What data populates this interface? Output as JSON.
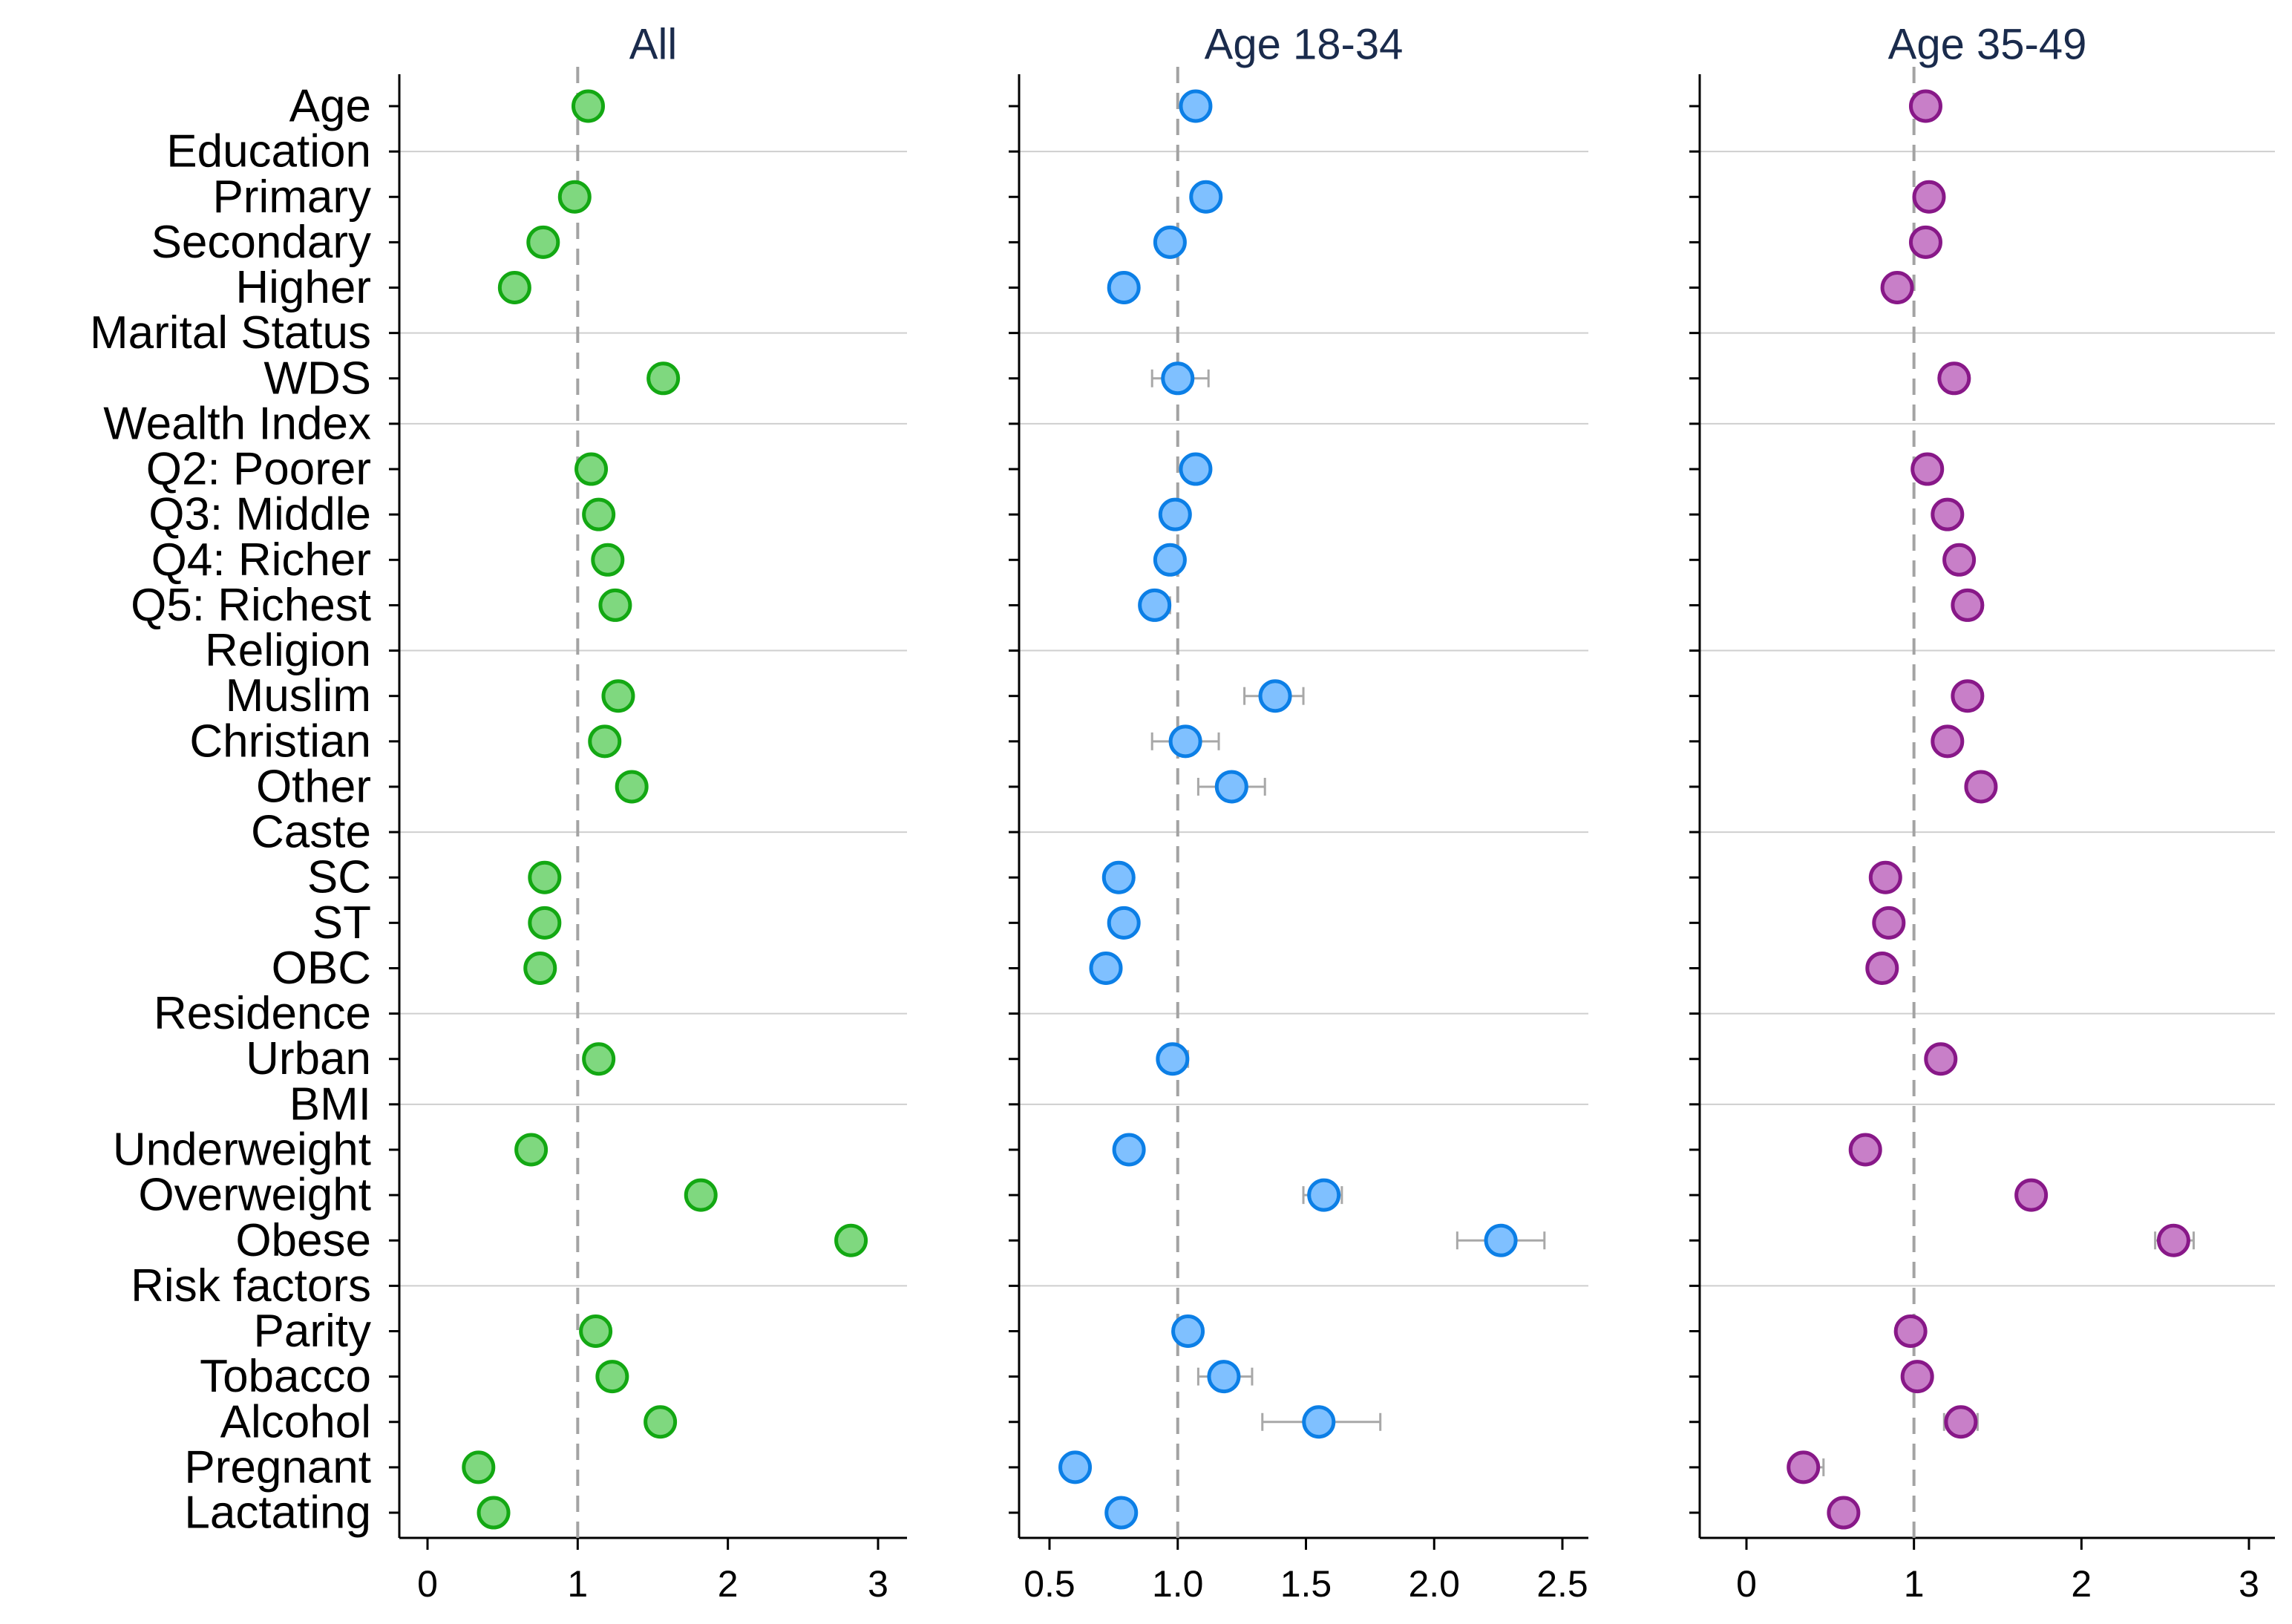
{
  "chart_data": {
    "type": "scatter",
    "reference_value": 1,
    "rows": [
      {
        "label": "Age",
        "header": false
      },
      {
        "label": "Education",
        "header": true
      },
      {
        "label": "Primary",
        "header": false
      },
      {
        "label": "Secondary",
        "header": false
      },
      {
        "label": "Higher",
        "header": false
      },
      {
        "label": "Marital Status",
        "header": true
      },
      {
        "label": "WDS",
        "header": false
      },
      {
        "label": "Wealth Index",
        "header": true
      },
      {
        "label": "Q2: Poorer",
        "header": false
      },
      {
        "label": "Q3: Middle",
        "header": false
      },
      {
        "label": "Q4: Richer",
        "header": false
      },
      {
        "label": "Q5: Richest",
        "header": false
      },
      {
        "label": "Religion",
        "header": true
      },
      {
        "label": "Muslim",
        "header": false
      },
      {
        "label": "Christian",
        "header": false
      },
      {
        "label": "Other",
        "header": false
      },
      {
        "label": "Caste",
        "header": true
      },
      {
        "label": "SC",
        "header": false
      },
      {
        "label": "ST",
        "header": false
      },
      {
        "label": "OBC",
        "header": false
      },
      {
        "label": "Residence",
        "header": true
      },
      {
        "label": "Urban",
        "header": false
      },
      {
        "label": "BMI",
        "header": true
      },
      {
        "label": "Underweight",
        "header": false
      },
      {
        "label": "Overweight",
        "header": false
      },
      {
        "label": "Obese",
        "header": false
      },
      {
        "label": "Risk factors",
        "header": true
      },
      {
        "label": "Parity",
        "header": false
      },
      {
        "label": "Tobacco",
        "header": false
      },
      {
        "label": "Alcohol",
        "header": false
      },
      {
        "label": "Pregnant",
        "header": false
      },
      {
        "label": "Lactating",
        "header": false
      }
    ],
    "panels": [
      {
        "title": "All",
        "xlim": [
          -0.2,
          3.2
        ],
        "ticks": [
          0,
          1,
          2,
          3
        ],
        "tick_labels": [
          "0",
          "1",
          "2",
          "3"
        ],
        "color": "#7fd87f",
        "edge": "#13a813",
        "points": [
          {
            "row": "Age",
            "est": 1.07,
            "lo": 1.05,
            "hi": 1.09
          },
          {
            "row": "Primary",
            "est": 0.98,
            "lo": 0.95,
            "hi": 1.01
          },
          {
            "row": "Secondary",
            "est": 0.77,
            "lo": 0.75,
            "hi": 0.79
          },
          {
            "row": "Higher",
            "est": 0.58,
            "lo": 0.56,
            "hi": 0.6
          },
          {
            "row": "WDS",
            "est": 1.57,
            "lo": 1.55,
            "hi": 1.59
          },
          {
            "row": "Q2: Poorer",
            "est": 1.09,
            "lo": 1.07,
            "hi": 1.11
          },
          {
            "row": "Q3: Middle",
            "est": 1.14,
            "lo": 1.12,
            "hi": 1.16
          },
          {
            "row": "Q4: Richer",
            "est": 1.2,
            "lo": 1.18,
            "hi": 1.22
          },
          {
            "row": "Q5: Richest",
            "est": 1.25,
            "lo": 1.23,
            "hi": 1.27
          },
          {
            "row": "Muslim",
            "est": 1.27,
            "lo": 1.25,
            "hi": 1.29
          },
          {
            "row": "Christian",
            "est": 1.18,
            "lo": 1.16,
            "hi": 1.2
          },
          {
            "row": "Other",
            "est": 1.36,
            "lo": 1.33,
            "hi": 1.39
          },
          {
            "row": "SC",
            "est": 0.78,
            "lo": 0.76,
            "hi": 0.8
          },
          {
            "row": "ST",
            "est": 0.78,
            "lo": 0.76,
            "hi": 0.8
          },
          {
            "row": "OBC",
            "est": 0.75,
            "lo": 0.73,
            "hi": 0.77
          },
          {
            "row": "Urban",
            "est": 1.14,
            "lo": 1.12,
            "hi": 1.16
          },
          {
            "row": "Underweight",
            "est": 0.69,
            "lo": 0.67,
            "hi": 0.71
          },
          {
            "row": "Overweight",
            "est": 1.82,
            "lo": 1.8,
            "hi": 1.84
          },
          {
            "row": "Obese",
            "est": 2.82,
            "lo": 2.74,
            "hi": 2.9
          },
          {
            "row": "Parity",
            "est": 1.12,
            "lo": 1.11,
            "hi": 1.13
          },
          {
            "row": "Tobacco",
            "est": 1.23,
            "lo": 1.21,
            "hi": 1.25
          },
          {
            "row": "Alcohol",
            "est": 1.55,
            "lo": 1.47,
            "hi": 1.63
          },
          {
            "row": "Pregnant",
            "est": 0.34,
            "lo": 0.32,
            "hi": 0.36
          },
          {
            "row": "Lactating",
            "est": 0.44,
            "lo": 0.43,
            "hi": 0.45
          }
        ]
      },
      {
        "title": "Age 18-34",
        "xlim": [
          0.4,
          2.6
        ],
        "ticks": [
          0.5,
          1.0,
          1.5,
          2.0,
          2.5
        ],
        "tick_labels": [
          "0.5",
          "1.0",
          "1.5",
          "2.0",
          "2.5"
        ],
        "color": "#7fc0ff",
        "edge": "#0c7fe6",
        "points": [
          {
            "row": "Age",
            "est": 1.07,
            "lo": 1.04,
            "hi": 1.1
          },
          {
            "row": "Primary",
            "est": 1.11,
            "lo": 1.06,
            "hi": 1.16
          },
          {
            "row": "Secondary",
            "est": 0.97,
            "lo": 0.94,
            "hi": 1.0
          },
          {
            "row": "Higher",
            "est": 0.79,
            "lo": 0.76,
            "hi": 0.82
          },
          {
            "row": "WDS",
            "est": 1.0,
            "lo": 0.9,
            "hi": 1.12
          },
          {
            "row": "Q2: Poorer",
            "est": 1.07,
            "lo": 1.03,
            "hi": 1.11
          },
          {
            "row": "Q3: Middle",
            "est": 0.99,
            "lo": 0.95,
            "hi": 1.04
          },
          {
            "row": "Q4: Richer",
            "est": 0.97,
            "lo": 0.93,
            "hi": 1.02
          },
          {
            "row": "Q5: Richest",
            "est": 0.91,
            "lo": 0.87,
            "hi": 0.97
          },
          {
            "row": "Muslim",
            "est": 1.38,
            "lo": 1.26,
            "hi": 1.49
          },
          {
            "row": "Christian",
            "est": 1.03,
            "lo": 0.9,
            "hi": 1.16
          },
          {
            "row": "Other",
            "est": 1.21,
            "lo": 1.08,
            "hi": 1.34
          },
          {
            "row": "SC",
            "est": 0.77,
            "lo": 0.74,
            "hi": 0.8
          },
          {
            "row": "ST",
            "est": 0.79,
            "lo": 0.75,
            "hi": 0.83
          },
          {
            "row": "OBC",
            "est": 0.72,
            "lo": 0.69,
            "hi": 0.75
          },
          {
            "row": "Urban",
            "est": 0.98,
            "lo": 0.94,
            "hi": 1.04
          },
          {
            "row": "Underweight",
            "est": 0.81,
            "lo": 0.78,
            "hi": 0.84
          },
          {
            "row": "Overweight",
            "est": 1.57,
            "lo": 1.49,
            "hi": 1.64
          },
          {
            "row": "Obese",
            "est": 2.26,
            "lo": 2.09,
            "hi": 2.43
          },
          {
            "row": "Parity",
            "est": 1.04,
            "lo": 1.02,
            "hi": 1.06
          },
          {
            "row": "Tobacco",
            "est": 1.18,
            "lo": 1.08,
            "hi": 1.29
          },
          {
            "row": "Alcohol",
            "est": 1.55,
            "lo": 1.33,
            "hi": 1.79
          },
          {
            "row": "Pregnant",
            "est": 0.6,
            "lo": 0.57,
            "hi": 0.63
          },
          {
            "row": "Lactating",
            "est": 0.78,
            "lo": 0.75,
            "hi": 0.81
          }
        ]
      },
      {
        "title": "Age 35-49",
        "xlim": [
          -0.2,
          3.2
        ],
        "ticks": [
          0,
          1,
          2,
          3
        ],
        "tick_labels": [
          "0",
          "1",
          "2",
          "3"
        ],
        "color": "#c87fc8",
        "edge": "#881888",
        "points": [
          {
            "row": "Age",
            "est": 1.07,
            "lo": 1.05,
            "hi": 1.09
          },
          {
            "row": "Primary",
            "est": 1.09,
            "lo": 1.07,
            "hi": 1.11
          },
          {
            "row": "Secondary",
            "est": 1.07,
            "lo": 1.05,
            "hi": 1.09
          },
          {
            "row": "Higher",
            "est": 0.9,
            "lo": 0.88,
            "hi": 0.92
          },
          {
            "row": "WDS",
            "est": 1.24,
            "lo": 1.22,
            "hi": 1.26
          },
          {
            "row": "Q2: Poorer",
            "est": 1.08,
            "lo": 1.06,
            "hi": 1.1
          },
          {
            "row": "Q3: Middle",
            "est": 1.2,
            "lo": 1.18,
            "hi": 1.22
          },
          {
            "row": "Q4: Richer",
            "est": 1.27,
            "lo": 1.25,
            "hi": 1.29
          },
          {
            "row": "Q5: Richest",
            "est": 1.32,
            "lo": 1.3,
            "hi": 1.34
          },
          {
            "row": "Muslim",
            "est": 1.32,
            "lo": 1.3,
            "hi": 1.34
          },
          {
            "row": "Christian",
            "est": 1.2,
            "lo": 1.13,
            "hi": 1.28
          },
          {
            "row": "Other",
            "est": 1.4,
            "lo": 1.37,
            "hi": 1.43
          },
          {
            "row": "SC",
            "est": 0.83,
            "lo": 0.81,
            "hi": 0.85
          },
          {
            "row": "ST",
            "est": 0.85,
            "lo": 0.83,
            "hi": 0.87
          },
          {
            "row": "OBC",
            "est": 0.81,
            "lo": 0.79,
            "hi": 0.83
          },
          {
            "row": "Urban",
            "est": 1.16,
            "lo": 1.14,
            "hi": 1.18
          },
          {
            "row": "Underweight",
            "est": 0.71,
            "lo": 0.69,
            "hi": 0.73
          },
          {
            "row": "Overweight",
            "est": 1.7,
            "lo": 1.68,
            "hi": 1.72
          },
          {
            "row": "Obese",
            "est": 2.55,
            "lo": 2.44,
            "hi": 2.67
          },
          {
            "row": "Parity",
            "est": 0.98,
            "lo": 0.97,
            "hi": 0.99
          },
          {
            "row": "Tobacco",
            "est": 1.02,
            "lo": 1.0,
            "hi": 1.04
          },
          {
            "row": "Alcohol",
            "est": 1.28,
            "lo": 1.18,
            "hi": 1.38
          },
          {
            "row": "Pregnant",
            "est": 0.34,
            "lo": 0.28,
            "hi": 0.46
          },
          {
            "row": "Lactating",
            "est": 0.58,
            "lo": 0.56,
            "hi": 0.6
          }
        ]
      }
    ]
  }
}
